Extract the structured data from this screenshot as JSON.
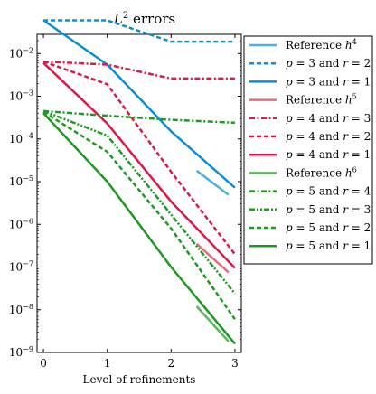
{
  "chart_data": {
    "type": "line",
    "title": "L² errors",
    "xlabel": "Level of refinements",
    "ylabel": "",
    "xlim": [
      -0.1,
      3.1
    ],
    "ylim_log10": [
      -9,
      -1.55
    ],
    "yscale": "log",
    "grid": false,
    "legend_position": "right, outside",
    "x_ticks": [
      "0",
      "1",
      "2",
      "3"
    ],
    "y_ticks": [
      {
        "base": "10",
        "exp": "−9",
        "value": -9
      },
      {
        "base": "10",
        "exp": "−8",
        "value": -8
      },
      {
        "base": "10",
        "exp": "−7",
        "value": -7
      },
      {
        "base": "10",
        "exp": "−6",
        "value": -6
      },
      {
        "base": "10",
        "exp": "−5",
        "value": -5
      },
      {
        "base": "10",
        "exp": "−4",
        "value": -4
      },
      {
        "base": "10",
        "exp": "−3",
        "value": -3
      },
      {
        "base": "10",
        "exp": "−2",
        "value": -2
      }
    ],
    "series": [
      {
        "name": "Reference h⁴",
        "label_base": "Reference h",
        "label_exp": "4",
        "color": "#4eb0dc",
        "style": "solid",
        "width": 2.5,
        "x": [
          2.4,
          2.9
        ],
        "y": [
          1.8e-05,
          4.9e-06
        ]
      },
      {
        "name": "p = 3 and r = 2",
        "color": "#0a8fce",
        "style": "dashed",
        "width": 2.5,
        "x": [
          0,
          1,
          2,
          3
        ],
        "y": [
          0.06,
          0.06,
          0.019,
          0.019
        ]
      },
      {
        "name": "p = 3 and r = 1",
        "color": "#0a8fce",
        "style": "solid",
        "width": 2.5,
        "x": [
          0,
          1,
          2,
          3
        ],
        "y": [
          0.06,
          0.0055,
          0.00015,
          7.2e-06
        ]
      },
      {
        "name": "Reference h⁵",
        "label_base": "Reference h",
        "label_exp": "5",
        "color": "#e86a82",
        "style": "solid",
        "width": 2.5,
        "x": [
          2.4,
          2.9
        ],
        "y": [
          3.5e-07,
          7.5e-08
        ]
      },
      {
        "name": "p = 4 and r = 3",
        "color": "#d81b48",
        "style": "dashdot",
        "width": 2.5,
        "x": [
          0,
          1,
          2,
          3
        ],
        "y": [
          0.0065,
          0.0055,
          0.0026,
          0.0026
        ]
      },
      {
        "name": "p = 4 and r = 2",
        "color": "#d81b48",
        "style": "dashed",
        "width": 2.5,
        "x": [
          0,
          1,
          2,
          3
        ],
        "y": [
          0.0065,
          0.0019,
          1.7e-05,
          2e-07
        ]
      },
      {
        "name": "p = 4 and r = 1",
        "color": "#d81b48",
        "style": "solid",
        "width": 2.5,
        "x": [
          0,
          1,
          2,
          3
        ],
        "y": [
          0.006,
          0.00023,
          3.4e-06,
          9.5e-08
        ]
      },
      {
        "name": "Reference h⁶",
        "label_base": "Reference h",
        "label_exp": "6",
        "color": "#5cb85c",
        "style": "solid",
        "width": 2.5,
        "x": [
          2.4,
          2.9
        ],
        "y": [
          1.2e-08,
          1.8e-09
        ]
      },
      {
        "name": "p = 5 and r = 4",
        "color": "#1e9a22",
        "style": "dashdot",
        "width": 2.5,
        "x": [
          0,
          1,
          2,
          3
        ],
        "y": [
          0.00045,
          0.00035,
          0.00028,
          0.00024
        ]
      },
      {
        "name": "p = 5 and r = 3",
        "color": "#1e9a22",
        "style": "dashdotdot",
        "width": 2.5,
        "x": [
          0,
          1,
          2,
          3
        ],
        "y": [
          0.00045,
          0.00012,
          1.7e-06,
          2.4e-08
        ]
      },
      {
        "name": "p = 5 and r = 2",
        "color": "#1e9a22",
        "style": "dashed",
        "width": 2.5,
        "x": [
          0,
          1,
          2,
          3
        ],
        "y": [
          0.00043,
          5e-05,
          8e-07,
          6e-09
        ]
      },
      {
        "name": "p = 5 and r = 1",
        "color": "#1e9a22",
        "style": "solid",
        "width": 2.5,
        "x": [
          0,
          1,
          2,
          3
        ],
        "y": [
          0.0004,
          1e-05,
          1e-07,
          1.6e-09
        ]
      }
    ]
  }
}
